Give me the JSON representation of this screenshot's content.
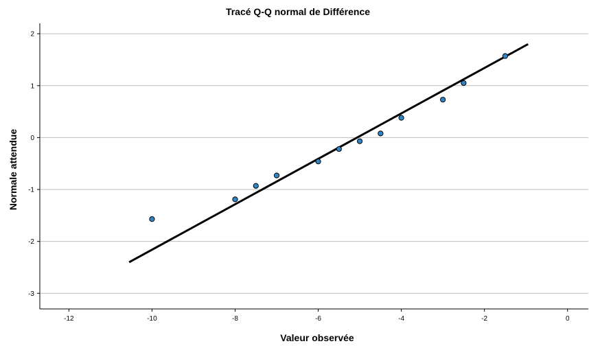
{
  "chart_data": {
    "type": "scatter",
    "title": "Tracé Q-Q normal de Différence",
    "xlabel": "Valeur observée",
    "ylabel": "Normale attendue",
    "xlim": [
      -12.7,
      0.5
    ],
    "ylim": [
      -3.3,
      2.2
    ],
    "xticks": [
      -12,
      -10,
      -8,
      -6,
      -4,
      -2,
      0
    ],
    "yticks": [
      2,
      1,
      0,
      -1,
      -2,
      -3
    ],
    "grid": "horizontal",
    "colors": {
      "point": "#2e86c8",
      "point_edge": "#000000",
      "line": "#000000",
      "grid": "#bdbdbd"
    },
    "points": [
      {
        "x": -10.0,
        "y": -1.57
      },
      {
        "x": -8.0,
        "y": -1.19
      },
      {
        "x": -7.5,
        "y": -0.93
      },
      {
        "x": -7.0,
        "y": -0.73
      },
      {
        "x": -6.0,
        "y": -0.46
      },
      {
        "x": -5.5,
        "y": -0.22
      },
      {
        "x": -5.0,
        "y": -0.07
      },
      {
        "x": -4.5,
        "y": 0.08
      },
      {
        "x": -4.0,
        "y": 0.38
      },
      {
        "x": -3.0,
        "y": 0.73
      },
      {
        "x": -2.5,
        "y": 1.05
      },
      {
        "x": -1.5,
        "y": 1.57
      }
    ],
    "reference_line": {
      "x": [
        -10.55,
        -0.95
      ],
      "y": [
        -2.4,
        1.8
      ]
    }
  }
}
